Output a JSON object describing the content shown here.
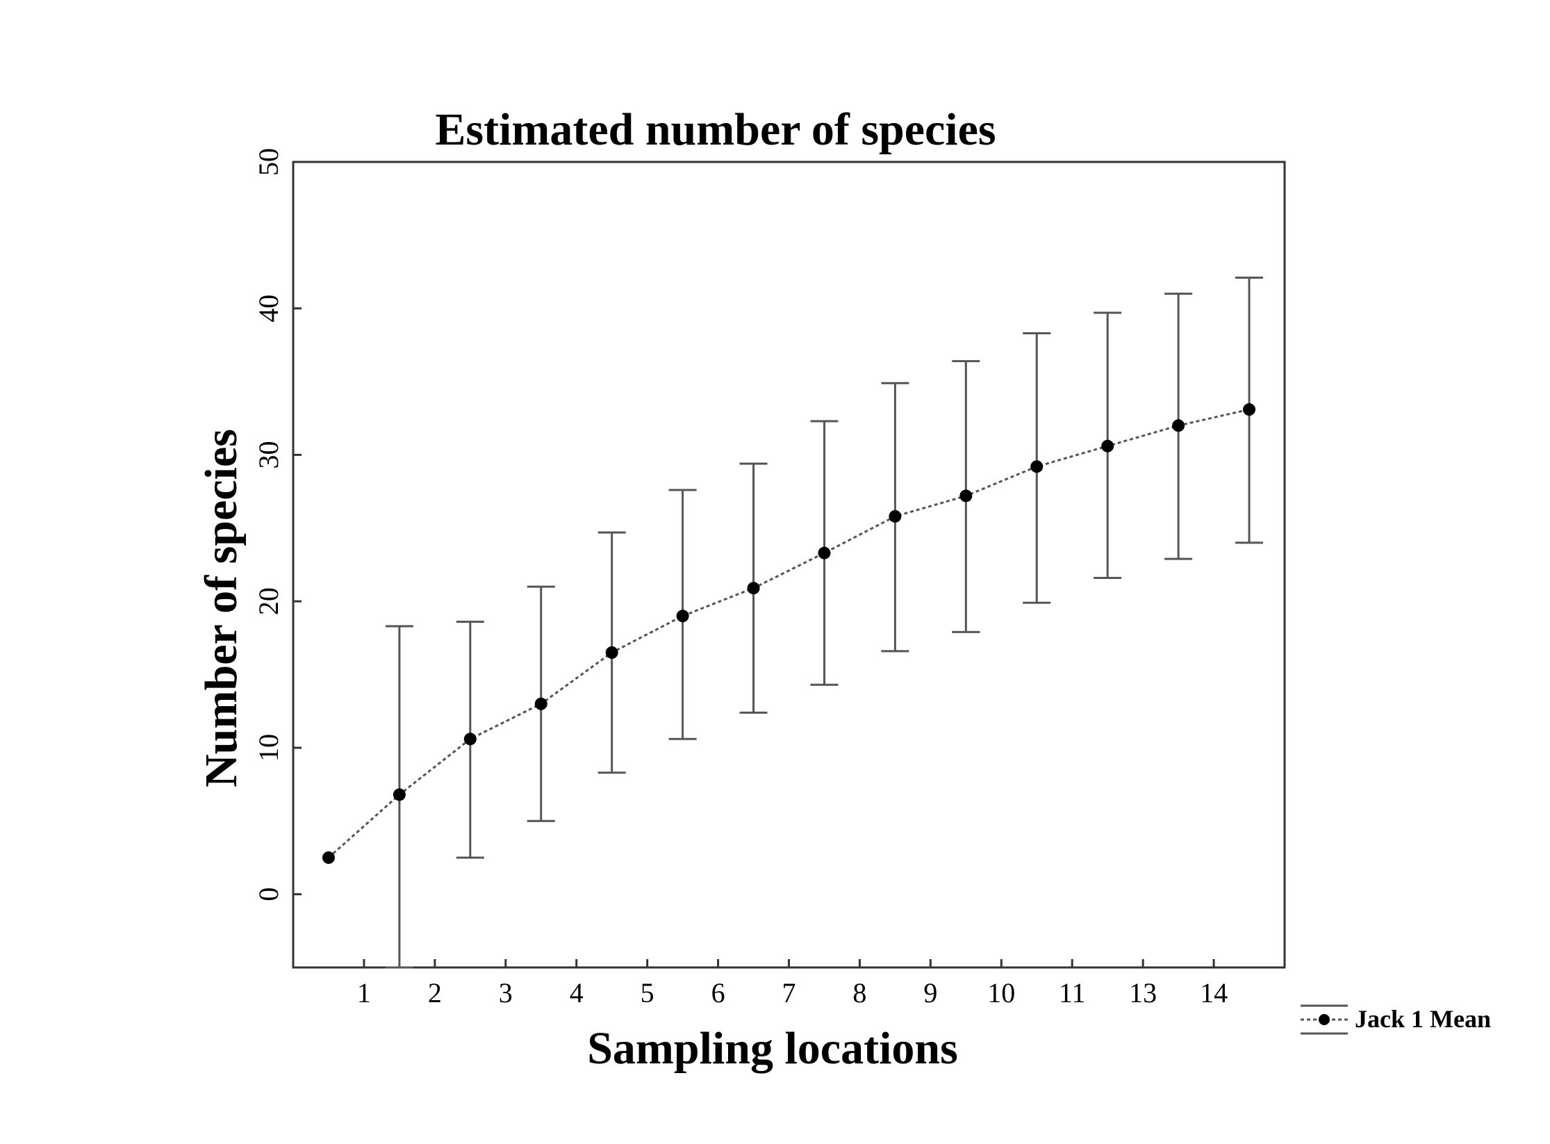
{
  "chart_data": {
    "type": "line",
    "title": "Estimated number of species",
    "xlabel": "Sampling locations",
    "ylabel": "Number of species",
    "x_ticks": [
      "1",
      "2",
      "3",
      "4",
      "5",
      "6",
      "7",
      "8",
      "9",
      "10",
      "11",
      "13",
      "14"
    ],
    "y_ticks": [
      "0",
      "10",
      "20",
      "30",
      "40",
      "50"
    ],
    "ylim": [
      -5,
      50
    ],
    "grid": false,
    "legend_placement": "bottom-right, outside plot",
    "series": [
      {
        "name": "Jack 1 Mean",
        "x": [
          0.5,
          1.5,
          2.5,
          3.5,
          4.5,
          5.5,
          6.5,
          7.5,
          8.5,
          9.5,
          10.5,
          11.5,
          12.5,
          13.5
        ],
        "y": [
          2.5,
          6.8,
          10.6,
          13.0,
          16.5,
          19.0,
          20.9,
          23.3,
          25.8,
          27.2,
          29.2,
          30.6,
          32.0,
          33.1
        ],
        "error_low": [
          2.5,
          -5.0,
          2.5,
          5.0,
          8.3,
          10.6,
          12.4,
          14.3,
          16.6,
          17.9,
          19.9,
          21.6,
          22.9,
          24.0
        ],
        "error_high": [
          2.5,
          18.3,
          18.6,
          21.0,
          24.7,
          27.6,
          29.4,
          32.3,
          34.9,
          36.4,
          38.3,
          39.7,
          41.0,
          42.1
        ]
      }
    ],
    "colors": {
      "line": "#555555",
      "marker": "#000000",
      "error_bar": "#555555",
      "axis": "#333333"
    }
  }
}
